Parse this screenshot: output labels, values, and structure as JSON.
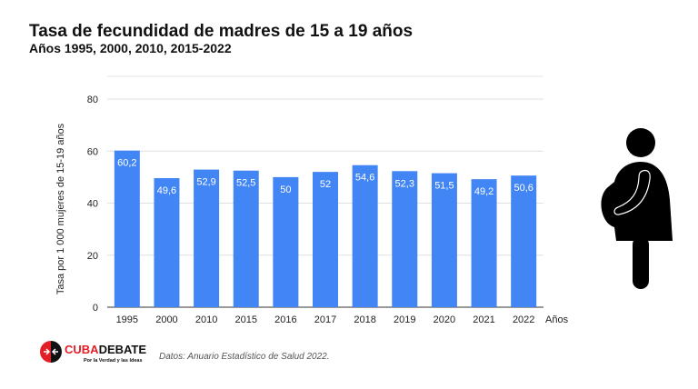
{
  "chart_data": {
    "type": "bar",
    "title": "Tasa de fecundidad de madres de 15 a 19 años",
    "subtitle": "Años 1995, 2000, 2010, 2015-2022",
    "xlabel": "Años",
    "ylabel": "Tasa por 1 000 mujeres de 15-19 años",
    "ylim": [
      0,
      80
    ],
    "yticks": [
      "0",
      "20",
      "40",
      "60",
      "80"
    ],
    "grid": true,
    "categories": [
      "1995",
      "2000",
      "2010",
      "2015",
      "2016",
      "2017",
      "2018",
      "2019",
      "2020",
      "2021",
      "2022"
    ],
    "values": [
      60.2,
      49.6,
      52.9,
      52.5,
      50,
      52,
      54.6,
      52.3,
      51.5,
      49.2,
      50.6
    ],
    "labels": [
      "60,2",
      "49,6",
      "52,9",
      "52,5",
      "50",
      "52",
      "54,6",
      "52,3",
      "51,5",
      "49,2",
      "50,6"
    ],
    "bar_color": "#4285f4"
  },
  "source": "Datos: Anuario Estadístico de Salud 2022.",
  "logo": {
    "name": "CUBADEBATE",
    "tagline": "Por la Verdad y las Ideas",
    "colors": [
      "#e21e26",
      "#111111"
    ]
  },
  "icon": "pregnant-woman-icon"
}
